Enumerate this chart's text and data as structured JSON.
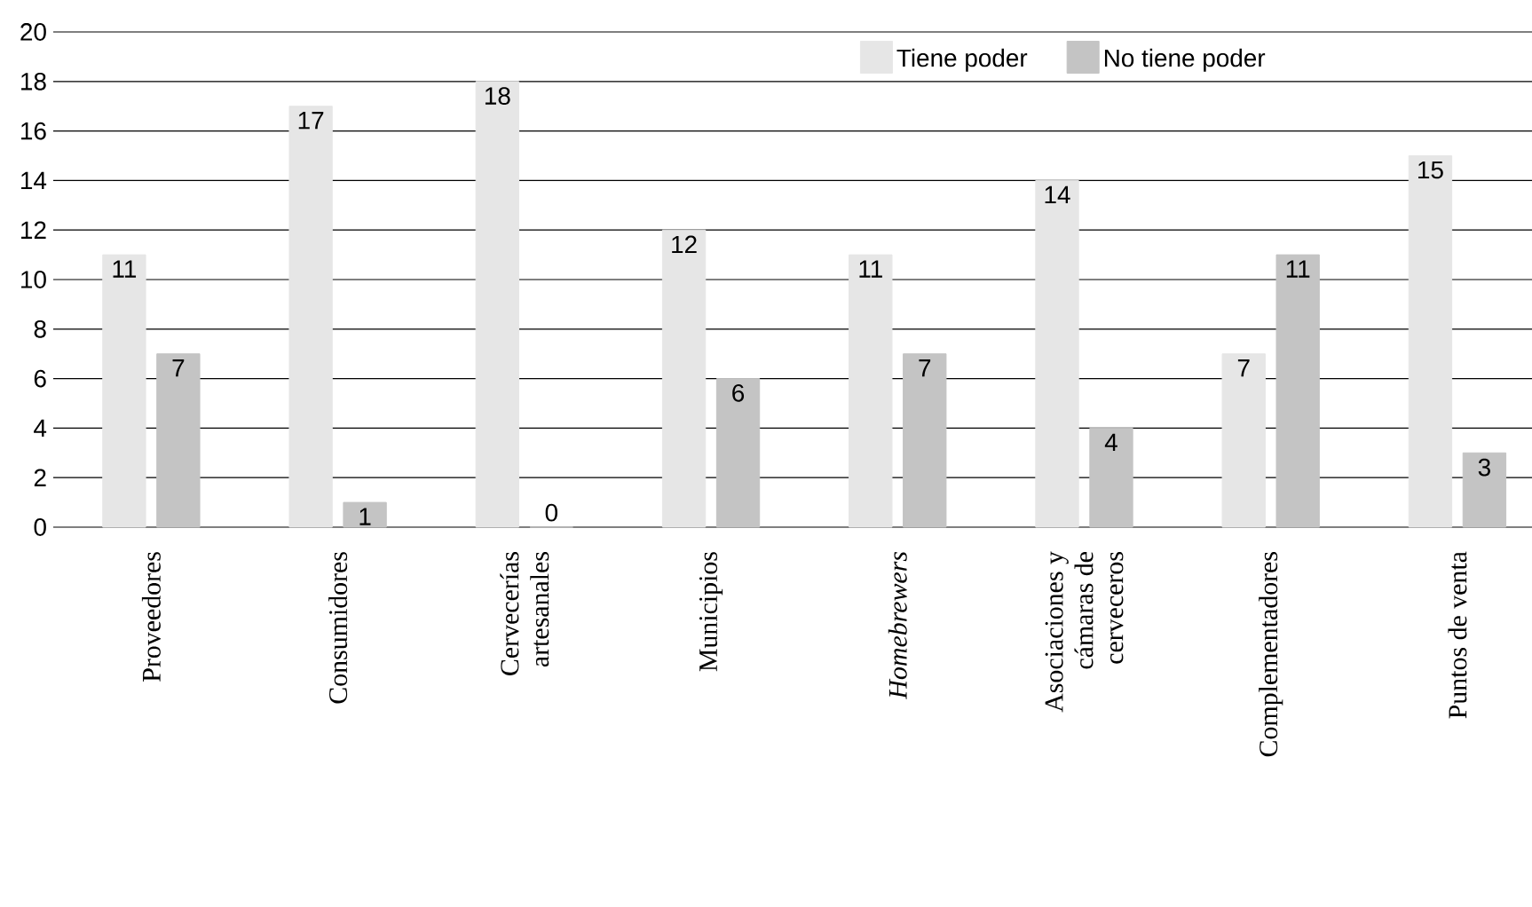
{
  "chart_data": {
    "type": "bar",
    "categories": [
      "Proveedores",
      "Consumidores",
      "Cervecerías artesanales",
      "Municipios",
      "*Homebrewers*",
      "Asociaciones y cámaras de cerveceros",
      "Complementadores",
      "Puntos de venta"
    ],
    "series": [
      {
        "name": "Tiene poder",
        "color": "#e6e6e6",
        "values": [
          11,
          17,
          18,
          12,
          11,
          14,
          7,
          15
        ]
      },
      {
        "name": "No tiene poder",
        "color": "#c4c4c4",
        "values": [
          7,
          1,
          0,
          6,
          7,
          4,
          11,
          3
        ]
      }
    ],
    "ylim": [
      0,
      20
    ],
    "yticks": [
      0,
      2,
      4,
      6,
      8,
      10,
      12,
      14,
      16,
      18,
      20
    ],
    "grid": "y",
    "legend": "top right",
    "data_labels": true
  }
}
